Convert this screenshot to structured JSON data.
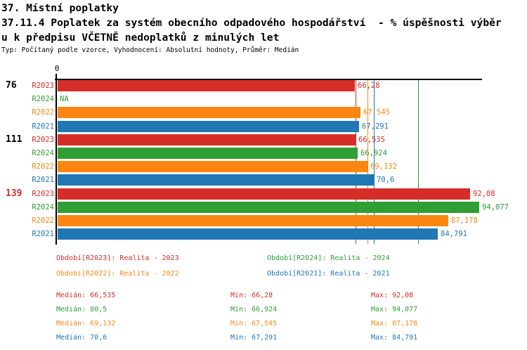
{
  "header": {
    "title_line1": "37. Místní poplatky",
    "title_line2": "37.11.4 Poplatek za systém obecního odpadového hospodářství  - % úspěšnosti výběr",
    "title_line3": "u k předpisu VČETNĚ nedoplatků z minulých let",
    "subtitle": "Typ: Počítaný podle vzorce, Vyhodnocení: Absolutní hodnoty, Průměr: Medián"
  },
  "colors": {
    "R2023": "#d62d28",
    "R2024": "#2f9e33",
    "R2022": "#fb8712",
    "R2021": "#1f77b4",
    "axis": "#000000",
    "normal_group_label": "#000000",
    "highlight_group_label": "#d62d28"
  },
  "chart_data": {
    "type": "bar",
    "orientation": "horizontal",
    "value_axis": {
      "min": 0,
      "max": 94.7,
      "origin_tick_label": "0",
      "grid": false
    },
    "series_order": [
      "R2023",
      "R2024",
      "R2022",
      "R2021"
    ],
    "groups": [
      {
        "label": "76",
        "highlighted": false,
        "bars": [
          {
            "series": "R2023",
            "value": 66.28,
            "label": "66,28"
          },
          {
            "series": "R2024",
            "value": null,
            "label": "NA"
          },
          {
            "series": "R2022",
            "value": 67.545,
            "label": "67,545"
          },
          {
            "series": "R2021",
            "value": 67.291,
            "label": "67,291"
          }
        ]
      },
      {
        "label": "111",
        "highlighted": false,
        "bars": [
          {
            "series": "R2023",
            "value": 66.535,
            "label": "66,535"
          },
          {
            "series": "R2024",
            "value": 66.924,
            "label": "66,924"
          },
          {
            "series": "R2022",
            "value": 69.132,
            "label": "69,132"
          },
          {
            "series": "R2021",
            "value": 70.6,
            "label": "70,6"
          }
        ]
      },
      {
        "label": "139",
        "highlighted": true,
        "bars": [
          {
            "series": "R2023",
            "value": 92.08,
            "label": "92,08"
          },
          {
            "series": "R2024",
            "value": 94.077,
            "label": "94,077"
          },
          {
            "series": "R2022",
            "value": 87.178,
            "label": "87,178"
          },
          {
            "series": "R2021",
            "value": 84.791,
            "label": "84,791"
          }
        ]
      }
    ],
    "median_lines": [
      {
        "series": "R2023",
        "value": 66.535
      },
      {
        "series": "R2024",
        "value": 80.5
      },
      {
        "series": "R2022",
        "value": 69.132
      },
      {
        "series": "R2021",
        "value": 70.6
      }
    ]
  },
  "legend": {
    "rows": [
      [
        {
          "series": "R2023",
          "text": "Období[R2023]: Realita - 2023"
        },
        {
          "series": "R2024",
          "text": "Období[R2024]: Realita - 2024"
        }
      ],
      [
        {
          "series": "R2022",
          "text": "Období[R2022]: Realita - 2022"
        },
        {
          "series": "R2021",
          "text": "Období[R2021]: Realita - 2021"
        }
      ]
    ]
  },
  "stats": {
    "rows": [
      {
        "series": "R2023",
        "median": "Medián: 66,535",
        "min": "Min: 66,28",
        "max": "Max: 92,08"
      },
      {
        "series": "R2024",
        "median": "Medián: 80,5",
        "min": "Min: 66,924",
        "max": "Max: 94,077"
      },
      {
        "series": "R2022",
        "median": "Medián: 69,132",
        "min": "Min: 67,545",
        "max": "Max: 87,178"
      },
      {
        "series": "R2021",
        "median": "Medián: 70,6",
        "min": "Min: 67,291",
        "max": "Max: 84,791"
      }
    ]
  }
}
